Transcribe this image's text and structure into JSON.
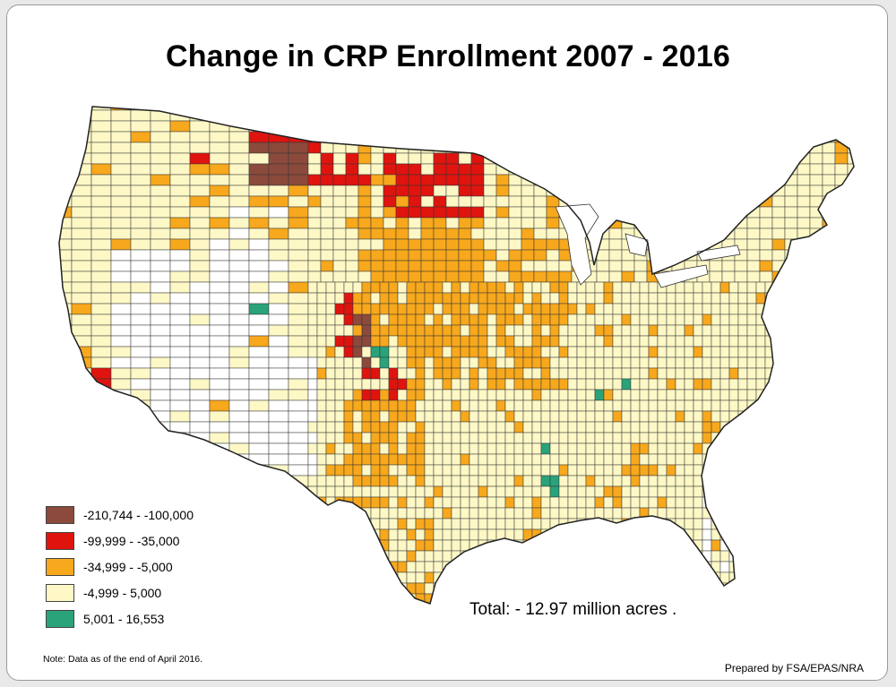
{
  "title": "Change in CRP Enrollment 2007 - 2016",
  "legend": [
    {
      "label": "-210,744 - -100,000",
      "color": "#8b4a3c"
    },
    {
      "label": "-99,999 - -35,000",
      "color": "#e0140e"
    },
    {
      "label": "-34,999 - -5,000",
      "color": "#f7a81c"
    },
    {
      "label": "-4,999 - 5,000",
      "color": "#fdf8c6"
    },
    {
      "label": "5,001 - 16,553",
      "color": "#2aa37a"
    }
  ],
  "no_data_color": "#ffffff",
  "total": "Total: - 12.97 million acres .",
  "note": "Note: Data as of the end of April 2016.",
  "credit": "Prepared by FSA/EPAS/NRA"
}
